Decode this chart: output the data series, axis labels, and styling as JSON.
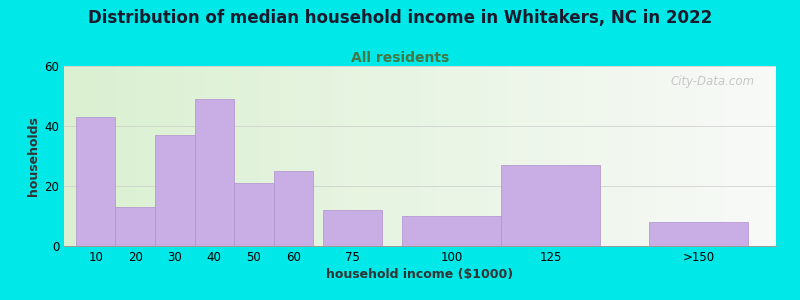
{
  "title": "Distribution of median household income in Whitakers, NC in 2022",
  "subtitle": "All residents",
  "xlabel": "household income ($1000)",
  "ylabel": "households",
  "bar_labels": [
    "10",
    "20",
    "30",
    "40",
    "50",
    "60",
    "75",
    "100",
    "125",
    ">150"
  ],
  "bar_values": [
    43,
    13,
    37,
    49,
    21,
    25,
    12,
    10,
    27,
    8
  ],
  "bar_color": "#c9aee5",
  "bar_edge_color": "#b090d0",
  "ylim": [
    0,
    60
  ],
  "yticks": [
    0,
    20,
    40,
    60
  ],
  "background_color": "#00e8e8",
  "plot_bg_color_left": "#daf0d0",
  "plot_bg_color_right": "#f8faf8",
  "title_fontsize": 12,
  "subtitle_fontsize": 10,
  "subtitle_color": "#447744",
  "axis_label_fontsize": 9,
  "tick_fontsize": 8.5,
  "watermark_text": "City-Data.com",
  "bar_positions": [
    10,
    20,
    30,
    40,
    50,
    60,
    75,
    100,
    125,
    162.5
  ],
  "bar_widths": [
    10,
    10,
    10,
    10,
    10,
    10,
    15,
    25,
    25,
    25
  ]
}
